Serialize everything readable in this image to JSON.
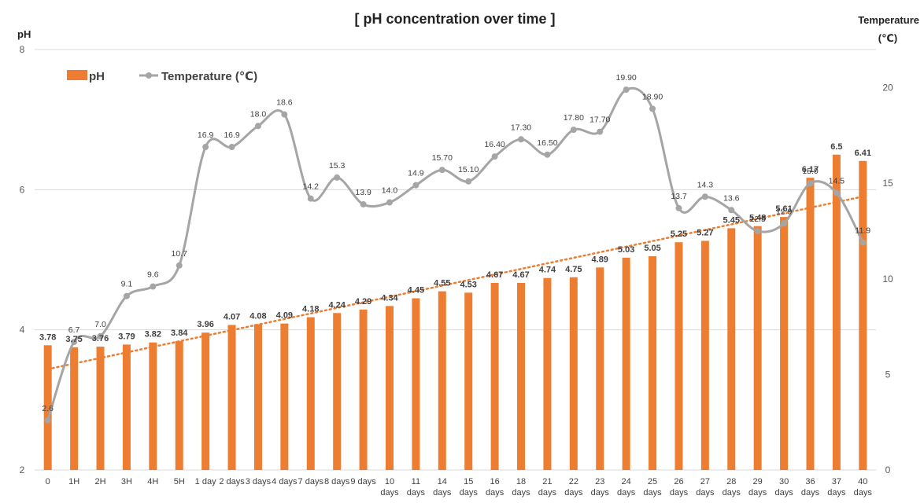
{
  "chart_data": {
    "type": "bar",
    "title": "[ pH concentration over time ]",
    "ylabel": "pH",
    "y2label_line1": "Temperature",
    "y2label_line2": "(℃)",
    "ylim": [
      2,
      8
    ],
    "y_ticks": [
      "2",
      "4",
      "6",
      "8"
    ],
    "y2lim": [
      0,
      22
    ],
    "y2_ticks": [
      "0",
      "5",
      "10",
      "15",
      "20"
    ],
    "categories": [
      [
        "0"
      ],
      [
        "1H"
      ],
      [
        "2H"
      ],
      [
        "3H"
      ],
      [
        "4H"
      ],
      [
        "5H"
      ],
      [
        "1 day"
      ],
      [
        "2 days"
      ],
      [
        "3 days"
      ],
      [
        "4 days"
      ],
      [
        "7 days"
      ],
      [
        "8 days"
      ],
      [
        "9 days"
      ],
      [
        "10",
        "days"
      ],
      [
        "11",
        "days"
      ],
      [
        "14",
        "days"
      ],
      [
        "15",
        "days"
      ],
      [
        "16",
        "days"
      ],
      [
        "18",
        "days"
      ],
      [
        "21",
        "days"
      ],
      [
        "22",
        "days"
      ],
      [
        "23",
        "days"
      ],
      [
        "24",
        "days"
      ],
      [
        "25",
        "days"
      ],
      [
        "26",
        "days"
      ],
      [
        "27",
        "days"
      ],
      [
        "28",
        "days"
      ],
      [
        "29",
        "days"
      ],
      [
        "30",
        "days"
      ],
      [
        "36",
        "days"
      ],
      [
        "37",
        "days"
      ],
      [
        "40",
        "days"
      ]
    ],
    "series": [
      {
        "name": "pH",
        "kind": "bar",
        "color": "#ED7D31",
        "values": [
          3.78,
          3.75,
          3.76,
          3.79,
          3.82,
          3.84,
          3.96,
          4.07,
          4.08,
          4.09,
          4.18,
          4.24,
          4.29,
          4.34,
          4.45,
          4.55,
          4.53,
          4.67,
          4.67,
          4.74,
          4.75,
          4.89,
          5.03,
          5.05,
          5.25,
          5.27,
          5.45,
          5.48,
          5.61,
          6.17,
          6.5,
          6.41
        ],
        "labels": [
          "3.78",
          "3.75",
          "3.76",
          "3.79",
          "3.82",
          "3.84",
          "3.96",
          "4.07",
          "4.08",
          "4.09",
          "4.18",
          "4.24",
          "4.29",
          "4.34",
          "4.45",
          "4.55",
          "4.53",
          "4.67",
          "4.67",
          "4.74",
          "4.75",
          "4.89",
          "5.03",
          "5.05",
          "5.25",
          "5.27",
          "5.45",
          "5.48",
          "5.61",
          "6.17",
          "6.5",
          "6.41"
        ]
      },
      {
        "name": "Temperature (℃)",
        "kind": "line",
        "axis": "right",
        "color": "#A5A5A5",
        "values": [
          2.6,
          6.7,
          7.0,
          9.1,
          9.6,
          10.7,
          16.9,
          16.9,
          18.0,
          18.6,
          14.2,
          15.3,
          13.9,
          14.0,
          14.9,
          15.7,
          15.1,
          16.4,
          17.3,
          16.5,
          17.8,
          17.7,
          19.9,
          18.9,
          13.7,
          14.3,
          13.6,
          12.5,
          12.9,
          15.0,
          14.5,
          11.9
        ],
        "labels": [
          "2.6",
          "6.7",
          "7.0",
          "9.1",
          "9.6",
          "10.7",
          "16.9",
          "16.9",
          "18.0",
          "18.6",
          "14.2",
          "15.3",
          "13.9",
          "14.0",
          "14.9",
          "15.70",
          "15.10",
          "16.40",
          "17.30",
          "16.50",
          "17.80",
          "17.70",
          "19.90",
          "18.90",
          "13.7",
          "14.3",
          "13.6",
          "12.5",
          "12.9",
          "15.0",
          "14.5",
          "11.9"
        ]
      }
    ],
    "trendline": {
      "series": "pH",
      "type": "linear",
      "style": "dotted",
      "color": "#ED7D31"
    },
    "legend_position": "top-left",
    "grid": true
  }
}
